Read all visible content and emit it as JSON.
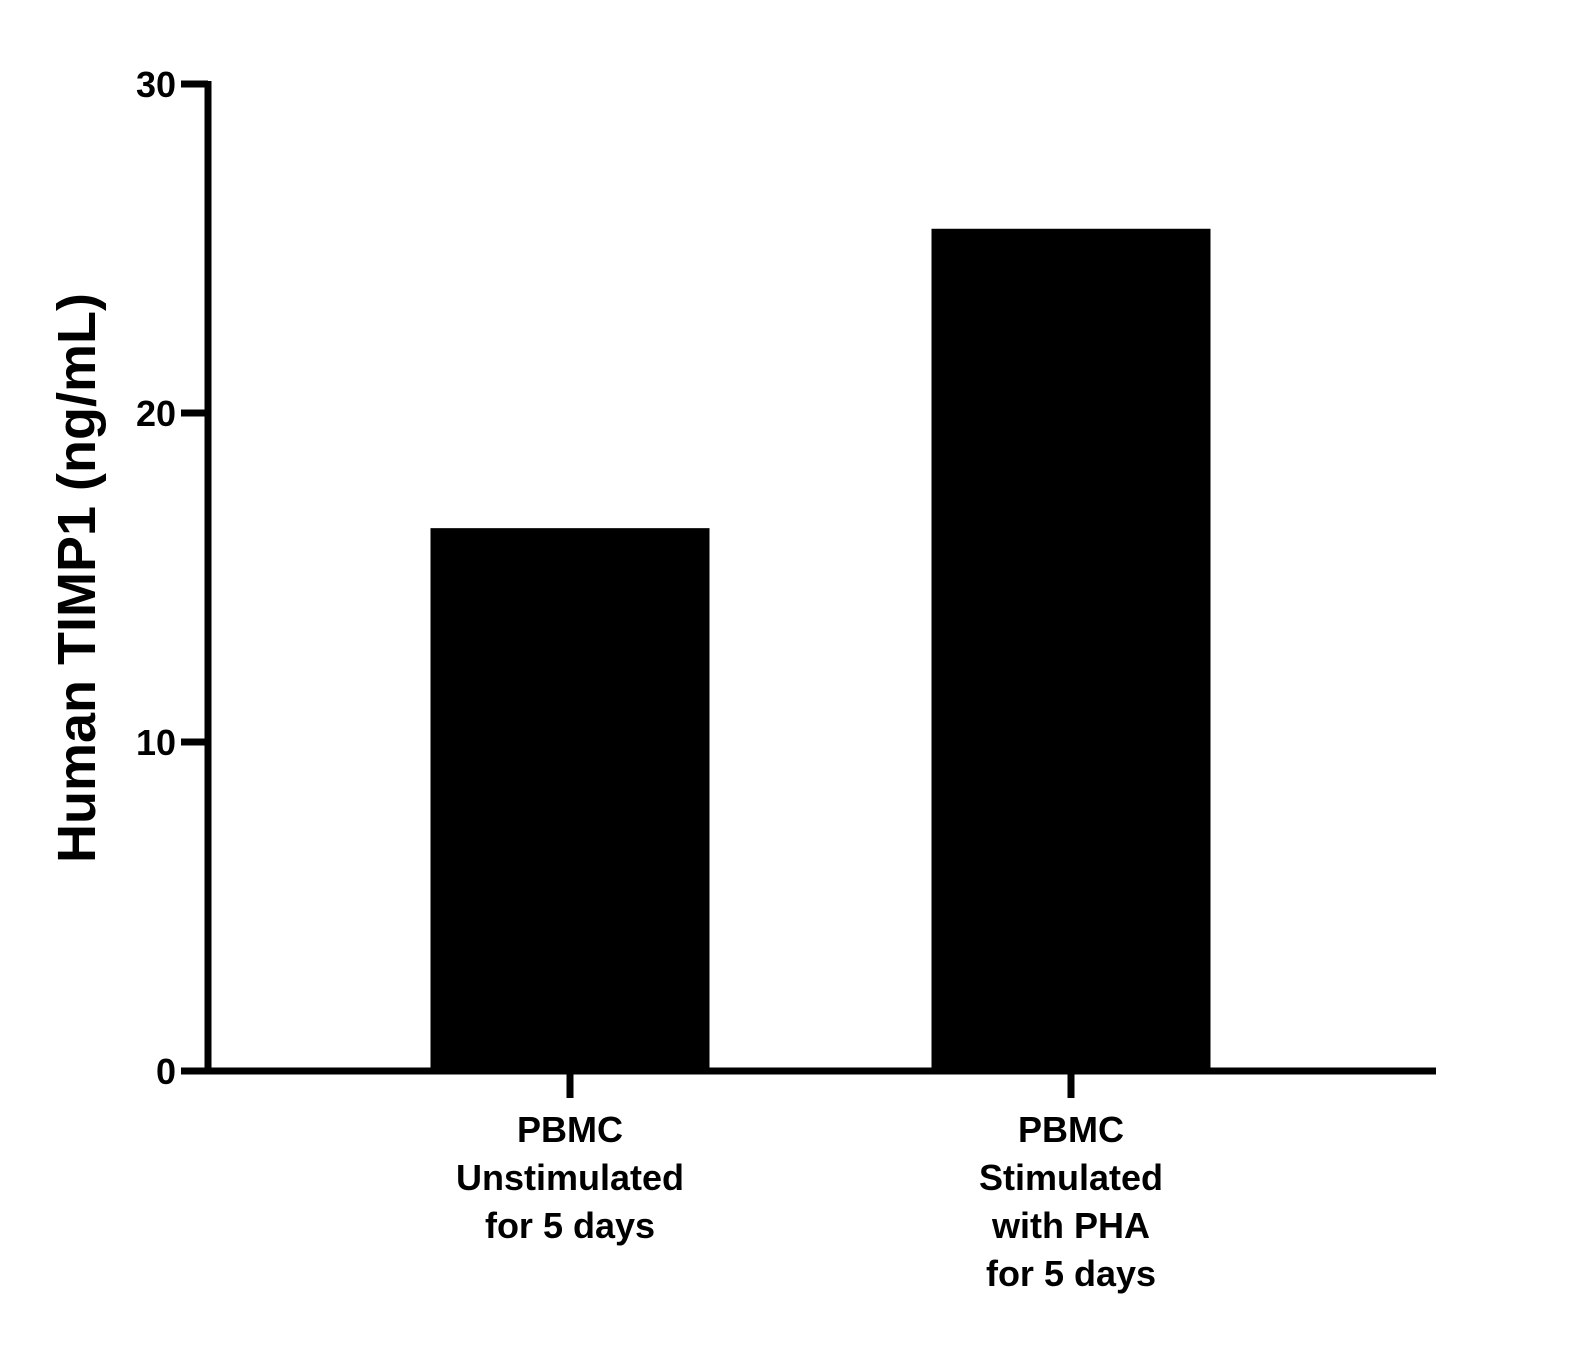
{
  "chart_data": {
    "type": "bar",
    "title": "",
    "xlabel": "",
    "ylabel": "Human TIMP1 (ng/mL)",
    "ylim": [
      0,
      30
    ],
    "yticks": [
      "0",
      "10",
      "20",
      "30"
    ],
    "categories": [
      [
        "PBMC",
        "Unstimulated",
        "for 5 days"
      ],
      [
        "PBMC",
        "Stimulated",
        "with PHA",
        "for 5 days"
      ]
    ],
    "values": [
      16.5,
      25.6
    ],
    "bar_color": "#000000",
    "axis_color": "#000000",
    "grid": false,
    "legend": "none"
  }
}
